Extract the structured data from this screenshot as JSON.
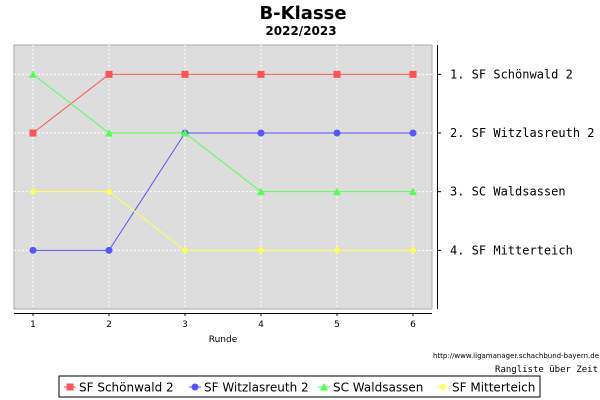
{
  "chart_data": {
    "type": "line",
    "title": "B-Klasse",
    "subtitle": "2022/2023",
    "xlabel": "Runde",
    "x": [
      1,
      2,
      3,
      4,
      5,
      6
    ],
    "xlim": [
      1,
      6
    ],
    "ylim": [
      0.5,
      5.0
    ],
    "y_inverted": true,
    "grid": true,
    "series": [
      {
        "name": "SF Schönwald 2",
        "color": "#ff5555",
        "marker": "square",
        "values": [
          2,
          1,
          1,
          1,
          1,
          1
        ]
      },
      {
        "name": "SF Witzlasreuth 2",
        "color": "#5555ff",
        "marker": "circle",
        "values": [
          4,
          4,
          2,
          2,
          2,
          2
        ]
      },
      {
        "name": "SC Waldsassen",
        "color": "#55ff55",
        "marker": "triangle",
        "values": [
          1,
          2,
          2,
          3,
          3,
          3
        ]
      },
      {
        "name": "SF Mitterteich",
        "color": "#ffff55",
        "marker": "diamond",
        "values": [
          3,
          3,
          4,
          4,
          4,
          4
        ]
      }
    ],
    "right_axis_labels": [
      "1. SF Schönwald 2",
      "2. SF Witzlasreuth 2",
      "3. SC Waldsassen",
      "4. SF Mitterteich"
    ],
    "legend_position": "bottom"
  },
  "footer": {
    "url": "http://www.ligamanager.schachbund-bayern.de",
    "caption": "Rangliste über Zeit"
  }
}
